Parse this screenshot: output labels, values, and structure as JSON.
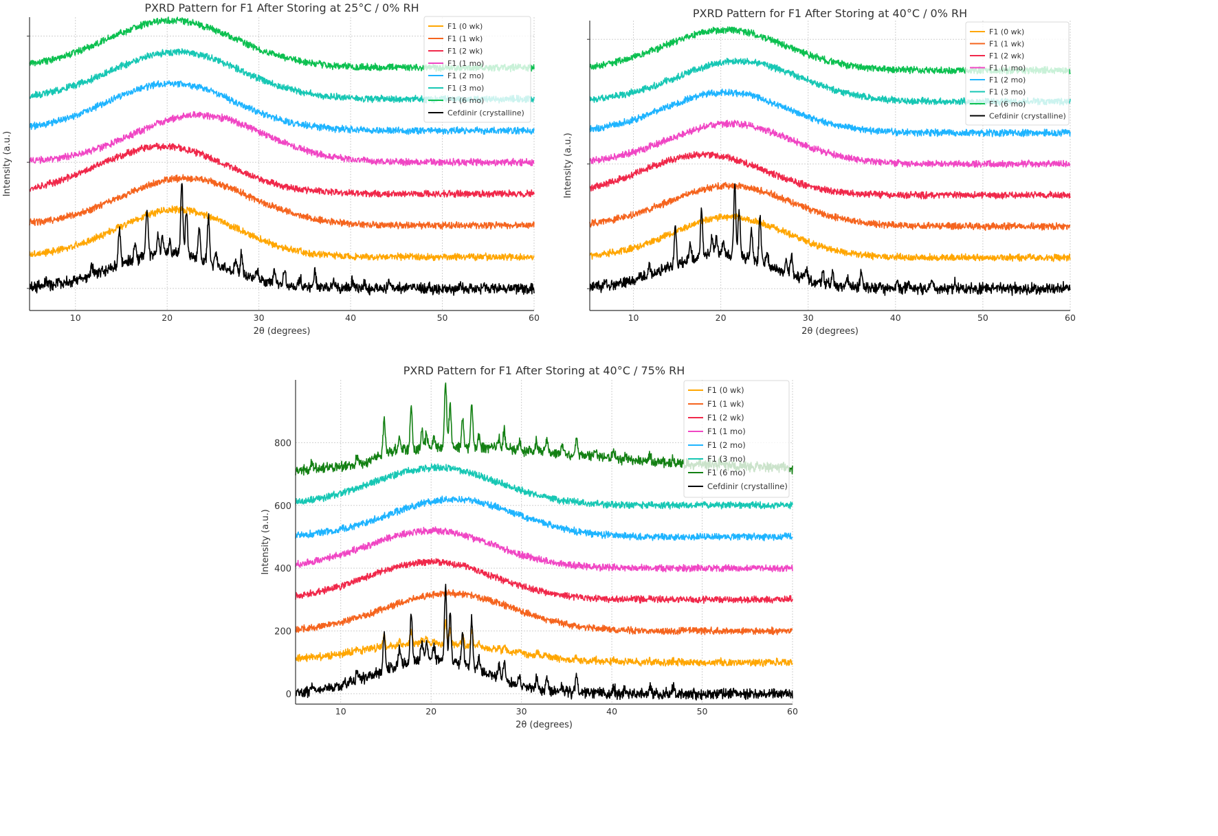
{
  "chart_data": [
    {
      "type": "line",
      "title": "PXRD Pattern for F1 After Storing at 25°C / 0% RH",
      "xlabel": "2θ (degrees)",
      "ylabel": "Intensity (a.u.)",
      "xlim": [
        5,
        60
      ],
      "ylim": [
        -70,
        860
      ],
      "xticks": [
        10,
        20,
        30,
        40,
        50,
        60
      ],
      "yticks": [],
      "grid": true,
      "legend_position": "top-right",
      "series": [
        {
          "name": "F1 (0 wk)",
          "color": "#ffa600",
          "offset": 100,
          "halo": {
            "center": 21,
            "width": 6.5,
            "amp": 150
          },
          "peak_scale": 0
        },
        {
          "name": "F1 (1 wk)",
          "color": "#f5641e",
          "offset": 200,
          "halo": {
            "center": 22,
            "width": 7,
            "amp": 150
          },
          "peak_scale": 0
        },
        {
          "name": "F1 (2 wk)",
          "color": "#f0284a",
          "offset": 300,
          "halo": {
            "center": 19.5,
            "width": 7,
            "amp": 150
          },
          "peak_scale": 0
        },
        {
          "name": "F1 (1 mo)",
          "color": "#f046c4",
          "offset": 400,
          "halo": {
            "center": 23.5,
            "width": 7,
            "amp": 150
          },
          "peak_scale": 0
        },
        {
          "name": "F1 (2 mo)",
          "color": "#1eb4ff",
          "offset": 500,
          "halo": {
            "center": 20.5,
            "width": 7,
            "amp": 150
          },
          "peak_scale": 0
        },
        {
          "name": "F1 (3 mo)",
          "color": "#17c7b4",
          "offset": 600,
          "halo": {
            "center": 21,
            "width": 7,
            "amp": 150
          },
          "peak_scale": 0
        },
        {
          "name": "F1 (6 mo)",
          "color": "#0cc050",
          "offset": 700,
          "halo": {
            "center": 20.5,
            "width": 7,
            "amp": 150
          },
          "peak_scale": 0
        },
        {
          "name": "Cefdinir (crystalline)",
          "color": "#000000",
          "offset": 0,
          "halo": {
            "center": 20,
            "width": 6,
            "amp": 110
          },
          "peak_scale": 1
        }
      ]
    },
    {
      "type": "line",
      "title": "PXRD Pattern for F1 After Storing at 40°C / 0% RH",
      "xlabel": "2θ (degrees)",
      "ylabel": "Intensity (a.u.)",
      "xlim": [
        5,
        60
      ],
      "ylim": [
        -70,
        860
      ],
      "xticks": [
        10,
        20,
        30,
        40,
        50,
        60
      ],
      "yticks": [],
      "grid": true,
      "legend_position": "top-right",
      "series": [
        {
          "name": "F1 (0 wk)",
          "color": "#ffa600",
          "offset": 100,
          "halo": {
            "center": 21,
            "width": 6.5,
            "amp": 130
          },
          "peak_scale": 0
        },
        {
          "name": "F1 (1 wk)",
          "color": "#f5641e",
          "offset": 200,
          "halo": {
            "center": 21,
            "width": 7,
            "amp": 130
          },
          "peak_scale": 0
        },
        {
          "name": "F1 (2 wk)",
          "color": "#f0284a",
          "offset": 300,
          "halo": {
            "center": 18,
            "width": 7,
            "amp": 130
          },
          "peak_scale": 0
        },
        {
          "name": "F1 (1 mo)",
          "color": "#f046c4",
          "offset": 400,
          "halo": {
            "center": 21,
            "width": 7,
            "amp": 130
          },
          "peak_scale": 0
        },
        {
          "name": "F1 (2 mo)",
          "color": "#1eb4ff",
          "offset": 500,
          "halo": {
            "center": 20.5,
            "width": 7,
            "amp": 130
          },
          "peak_scale": 0
        },
        {
          "name": "F1 (3 mo)",
          "color": "#17c7b4",
          "offset": 600,
          "halo": {
            "center": 22,
            "width": 7,
            "amp": 130
          },
          "peak_scale": 0
        },
        {
          "name": "F1 (6 mo)",
          "color": "#0cc050",
          "offset": 700,
          "halo": {
            "center": 20.5,
            "width": 7,
            "amp": 130
          },
          "peak_scale": 0
        },
        {
          "name": "Cefdinir (crystalline)",
          "color": "#000000",
          "offset": 0,
          "halo": {
            "center": 20,
            "width": 6,
            "amp": 110
          },
          "peak_scale": 1
        }
      ]
    },
    {
      "type": "line",
      "title": "PXRD Pattern for F1 After Storing at 40°C / 75% RH",
      "xlabel": "2θ (degrees)",
      "ylabel": "Intensity (a.u.)",
      "xlim": [
        5,
        60
      ],
      "ylim": [
        -33,
        1000
      ],
      "xticks": [
        10,
        20,
        30,
        40,
        50,
        60
      ],
      "yticks": [
        0,
        200,
        400,
        600,
        800
      ],
      "grid": true,
      "legend_position": "top-right",
      "series": [
        {
          "name": "F1 (0 wk)",
          "color": "#ffa600",
          "offset": 100,
          "halo": {
            "center": 20,
            "width": 8,
            "amp": 60
          },
          "peak_scale": 0.3
        },
        {
          "name": "F1 (1 wk)",
          "color": "#f5641e",
          "offset": 200,
          "halo": {
            "center": 22,
            "width": 7,
            "amp": 120
          },
          "peak_scale": 0
        },
        {
          "name": "F1 (2 wk)",
          "color": "#f0284a",
          "offset": 300,
          "halo": {
            "center": 20,
            "width": 7,
            "amp": 120
          },
          "peak_scale": 0
        },
        {
          "name": "F1 (1 mo)",
          "color": "#f046c4",
          "offset": 400,
          "halo": {
            "center": 20,
            "width": 7,
            "amp": 120
          },
          "peak_scale": 0
        },
        {
          "name": "F1 (2 mo)",
          "color": "#1eb4ff",
          "offset": 500,
          "halo": {
            "center": 22.5,
            "width": 7,
            "amp": 120
          },
          "peak_scale": 0
        },
        {
          "name": "F1 (3 mo)",
          "color": "#17c7b4",
          "offset": 600,
          "halo": {
            "center": 20.5,
            "width": 7,
            "amp": 120
          },
          "peak_scale": 0
        },
        {
          "name": "F1 (6 mo)",
          "color": "#138013",
          "offset": 700,
          "halo": {
            "center": 24,
            "width": 12,
            "amp": 45
          },
          "peak_scale": 0.9
        },
        {
          "name": "Cefdinir (crystalline)",
          "color": "#000000",
          "offset": 0,
          "halo": {
            "center": 20,
            "width": 6,
            "amp": 110
          },
          "peak_scale": 1
        }
      ]
    }
  ],
  "crystalline_peaks": [
    [
      6.8,
      20
    ],
    [
      11.8,
      30
    ],
    [
      14.8,
      120
    ],
    [
      16.5,
      50
    ],
    [
      17.8,
      150
    ],
    [
      19.0,
      60
    ],
    [
      19.5,
      55
    ],
    [
      20.3,
      40
    ],
    [
      21.6,
      230
    ],
    [
      22.1,
      150
    ],
    [
      23.5,
      100
    ],
    [
      24.5,
      150
    ],
    [
      25.3,
      40
    ],
    [
      27.5,
      40
    ],
    [
      28.1,
      65
    ],
    [
      29.8,
      30
    ],
    [
      31.7,
      35
    ],
    [
      32.8,
      45
    ],
    [
      34.5,
      25
    ],
    [
      36.1,
      55
    ],
    [
      38.2,
      15
    ],
    [
      40.2,
      25
    ],
    [
      41.5,
      15
    ],
    [
      44.2,
      25
    ],
    [
      46.8,
      15
    ],
    [
      52,
      10
    ]
  ]
}
